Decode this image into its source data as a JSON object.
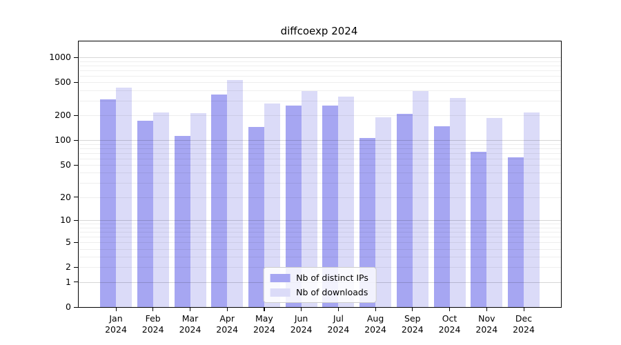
{
  "chart_data": {
    "type": "bar",
    "title": "diffcoexp 2024",
    "y_scale": "log1p",
    "ylim": [
      0,
      1552
    ],
    "y_ticks": [
      0,
      1,
      2,
      5,
      10,
      20,
      50,
      100,
      200,
      500,
      1000
    ],
    "grid": true,
    "legend_position": "lower center",
    "categories": [
      {
        "label": "Jan",
        "sub": "2024"
      },
      {
        "label": "Feb",
        "sub": "2024"
      },
      {
        "label": "Mar",
        "sub": "2024"
      },
      {
        "label": "Apr",
        "sub": "2024"
      },
      {
        "label": "May",
        "sub": "2024"
      },
      {
        "label": "Jun",
        "sub": "2024"
      },
      {
        "label": "Jul",
        "sub": "2024"
      },
      {
        "label": "Aug",
        "sub": "2024"
      },
      {
        "label": "Sep",
        "sub": "2024"
      },
      {
        "label": "Oct",
        "sub": "2024"
      },
      {
        "label": "Nov",
        "sub": "2024"
      },
      {
        "label": "Dec",
        "sub": "2024"
      }
    ],
    "series": [
      {
        "name": "Nb of distinct IPs",
        "color": "#a6a6f2",
        "values": [
          313,
          172,
          113,
          356,
          146,
          264,
          263,
          106,
          208,
          148,
          72,
          62
        ]
      },
      {
        "name": "Nb of downloads",
        "color": "#dbdbf8",
        "values": [
          431,
          218,
          214,
          532,
          276,
          394,
          337,
          188,
          390,
          322,
          186,
          217
        ]
      }
    ]
  }
}
